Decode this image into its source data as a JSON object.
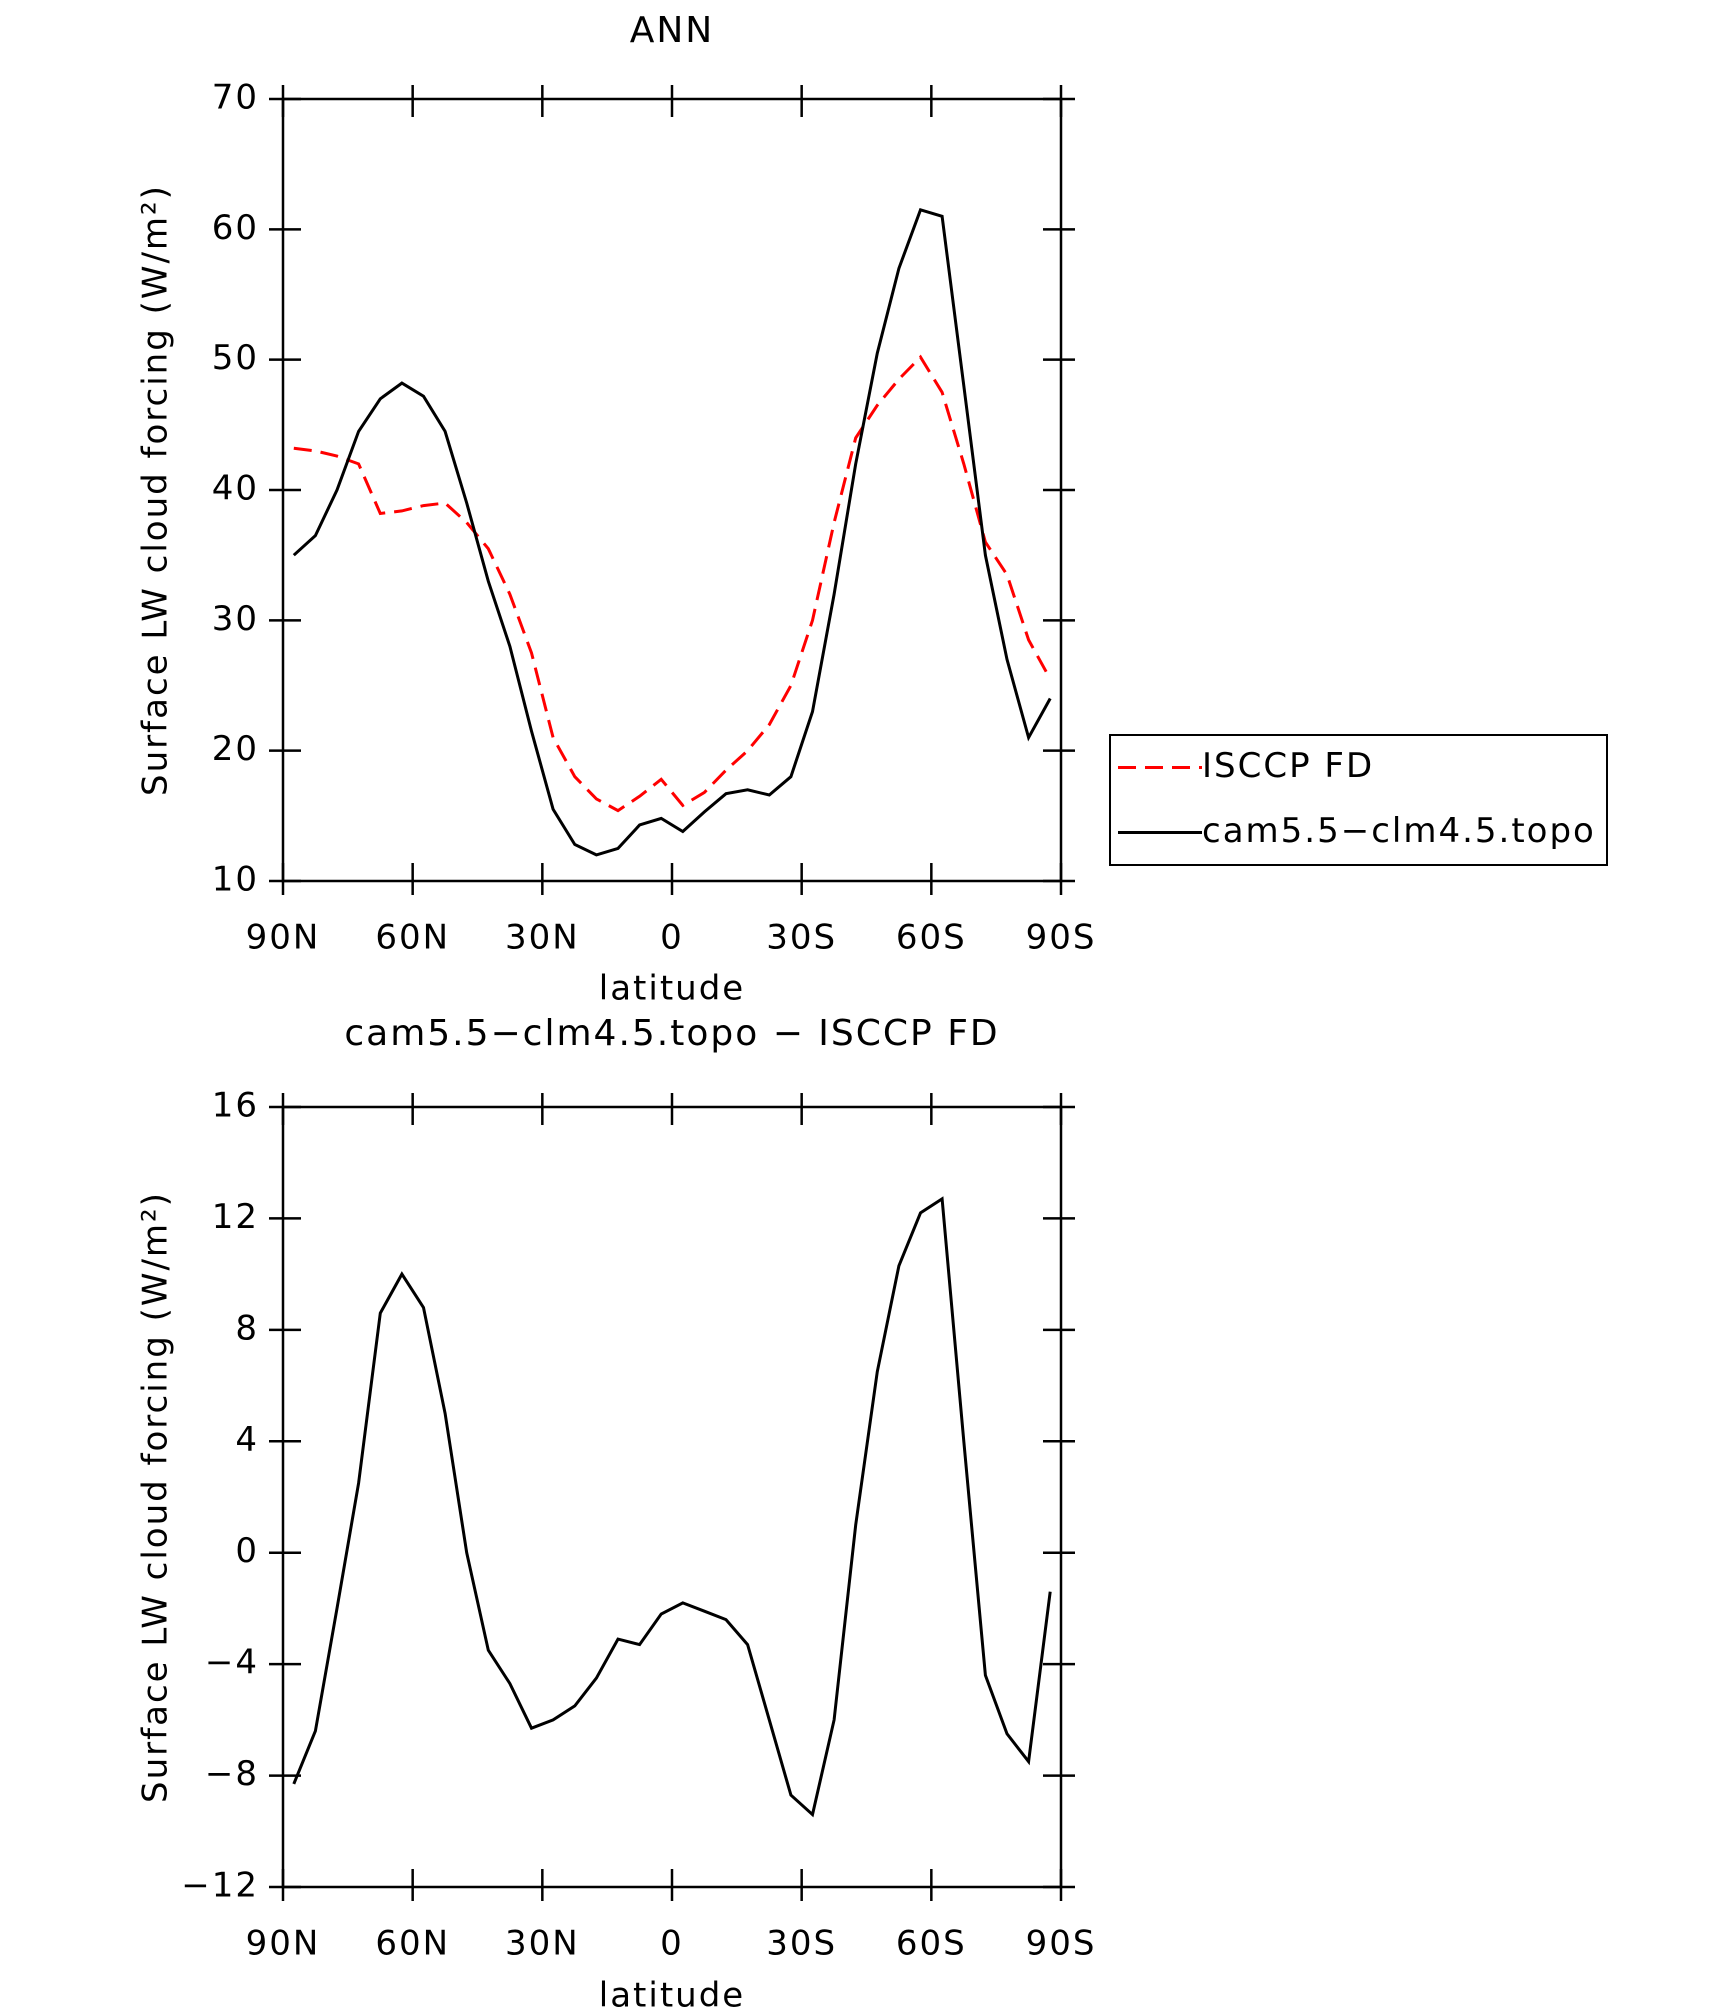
{
  "chart_data": [
    {
      "type": "line",
      "title": "ANN",
      "y_label": "Surface LW cloud forcing (W/m²)",
      "x_label": "latitude",
      "xlim": [
        90,
        -90
      ],
      "xticks": [
        {
          "value": 90,
          "label": "90N"
        },
        {
          "value": 60,
          "label": "60N"
        },
        {
          "value": 30,
          "label": "30N"
        },
        0,
        {
          "value": -30,
          "label": "30S"
        },
        {
          "value": -60,
          "label": "60S"
        },
        {
          "value": -90,
          "label": "90S"
        }
      ],
      "ylim": [
        10,
        70
      ],
      "yticks": [
        10,
        20,
        30,
        40,
        50,
        60,
        70
      ],
      "legend": "right",
      "x": [
        87.5,
        82.5,
        77.5,
        72.5,
        67.5,
        62.5,
        57.5,
        52.5,
        47.5,
        42.5,
        37.5,
        32.5,
        27.5,
        22.5,
        17.5,
        12.5,
        7.5,
        2.5,
        -2.5,
        -7.5,
        -12.5,
        -17.5,
        -22.5,
        -27.5,
        -32.5,
        -37.5,
        -42.5,
        -47.5,
        -52.5,
        -57.5,
        -62.5,
        -67.5,
        -72.5,
        -77.5,
        -82.5,
        -87.5
      ],
      "series": [
        {
          "name": "ISCCP FD",
          "color": "#ff0000",
          "dash": true,
          "values": [
            43.2,
            43,
            42.6,
            42,
            38.2,
            38.4,
            38.8,
            39,
            37.5,
            35.5,
            32,
            27.5,
            21,
            18,
            16.3,
            15.4,
            16.5,
            17.8,
            15.8,
            16.8,
            18.5,
            20,
            22,
            25,
            30,
            37.5,
            44,
            46.5,
            48.5,
            50.2,
            47.5,
            42,
            36,
            33.5,
            28.5,
            25.5
          ]
        },
        {
          "name": "cam5.5−clm4.5.topo",
          "color": "#000000",
          "dash": false,
          "values": [
            35,
            36.5,
            40,
            44.5,
            47,
            48.2,
            47.2,
            44.5,
            39,
            33,
            28,
            21.5,
            15.5,
            12.8,
            12,
            12.5,
            14.3,
            14.8,
            13.8,
            15.3,
            16.7,
            17,
            16.6,
            18,
            23,
            32,
            42,
            50.5,
            57,
            61.5,
            61,
            48,
            35,
            27,
            21,
            24
          ]
        }
      ]
    },
    {
      "type": "line",
      "title": "cam5.5−clm4.5.topo − ISCCP FD",
      "y_label": "Surface LW cloud forcing (W/m²)",
      "x_label": "latitude",
      "xlim": [
        90,
        -90
      ],
      "xticks": [
        {
          "value": 90,
          "label": "90N"
        },
        {
          "value": 60,
          "label": "60N"
        },
        {
          "value": 30,
          "label": "30N"
        },
        0,
        {
          "value": -30,
          "label": "30S"
        },
        {
          "value": -60,
          "label": "60S"
        },
        {
          "value": -90,
          "label": "90S"
        }
      ],
      "ylim": [
        -12,
        16
      ],
      "yticks": [
        {
          "value": -12,
          "label": "−12"
        },
        {
          "value": -8,
          "label": "−8"
        },
        {
          "value": -4,
          "label": "−4"
        },
        0,
        4,
        8,
        12,
        16
      ],
      "x": [
        87.5,
        82.5,
        77.5,
        72.5,
        67.5,
        62.5,
        57.5,
        52.5,
        47.5,
        42.5,
        37.5,
        32.5,
        27.5,
        22.5,
        17.5,
        12.5,
        7.5,
        2.5,
        -2.5,
        -7.5,
        -12.5,
        -17.5,
        -22.5,
        -27.5,
        -32.5,
        -37.5,
        -42.5,
        -47.5,
        -52.5,
        -57.5,
        -62.5,
        -67.5,
        -72.5,
        -77.5,
        -82.5,
        -87.5
      ],
      "series": [
        {
          "color": "#000000",
          "dash": false,
          "values": [
            -8.3,
            -6.4,
            -2,
            2.5,
            8.6,
            10,
            8.8,
            5,
            0,
            -3.5,
            -4.7,
            -6.3,
            -6,
            -5.5,
            -4.5,
            -3.1,
            -3.3,
            -2.2,
            -1.8,
            -2.1,
            -2.4,
            -3.3,
            -6,
            -8.7,
            -9.4,
            -6,
            1,
            6.5,
            10.3,
            12.2,
            12.7,
            4,
            -4.4,
            -6.5,
            -7.5,
            -1.4
          ]
        }
      ]
    }
  ]
}
